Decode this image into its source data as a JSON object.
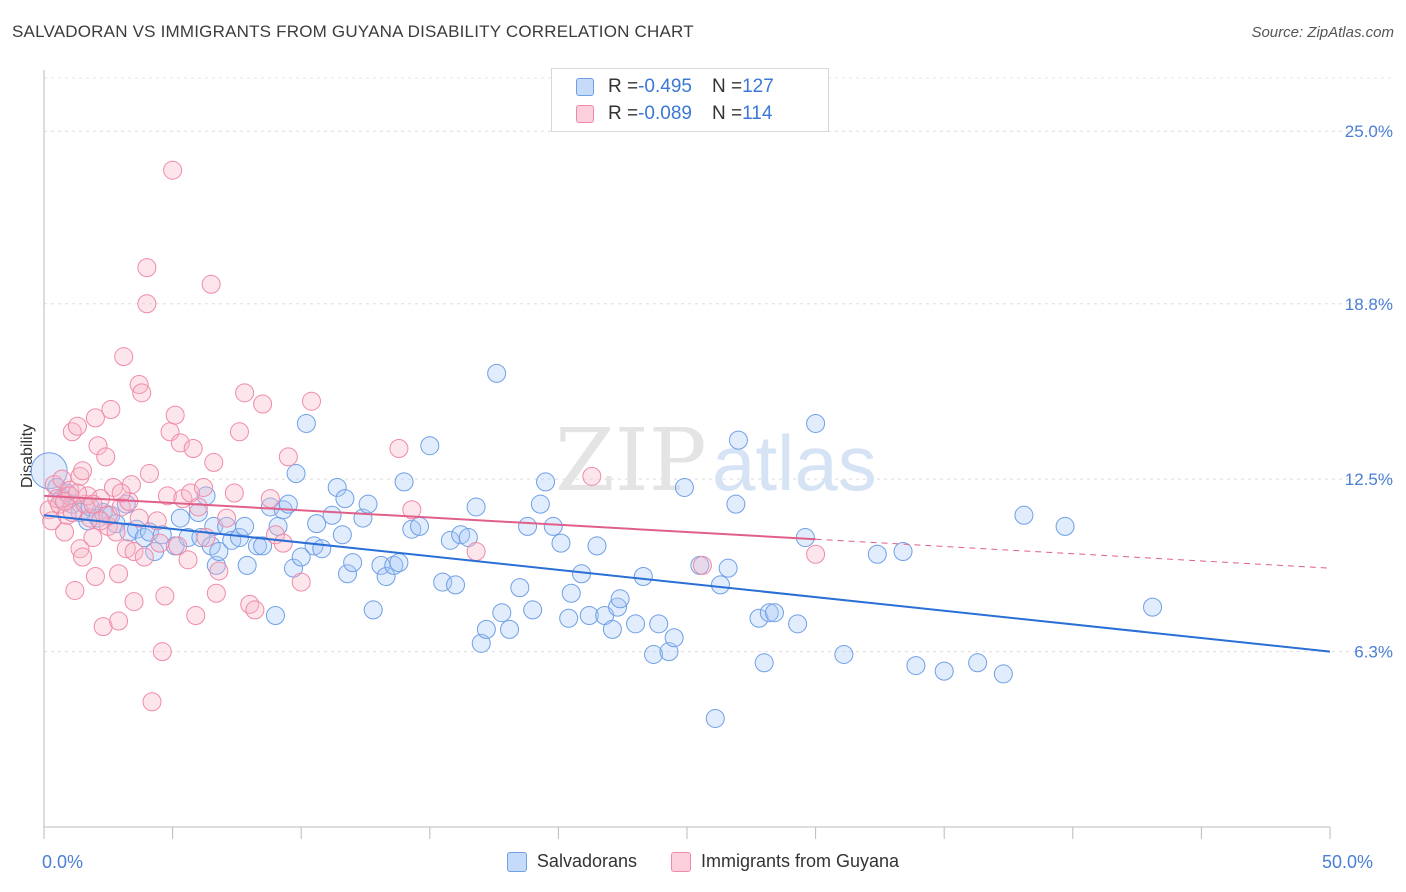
{
  "header": {
    "title": "SALVADORAN VS IMMIGRANTS FROM GUYANA DISABILITY CORRELATION CHART",
    "source": "Source: ZipAtlas.com"
  },
  "watermark": {
    "zip": "ZIP",
    "atlas": "atlas"
  },
  "legend": {
    "rows": [
      {
        "r_label": "R = ",
        "r_value": "-0.495",
        "n_label": "N = ",
        "n_value": "127",
        "color": "#a9c8f5"
      },
      {
        "r_label": "R = ",
        "r_value": "-0.089",
        "n_label": "N = ",
        "n_value": "114",
        "color": "#f7b6c9"
      }
    ]
  },
  "bottom_legend": {
    "items": [
      {
        "label": "Salvadorans",
        "color": "#a9c8f5"
      },
      {
        "label": "Immigrants from Guyana",
        "color": "#f7b6c9"
      }
    ]
  },
  "chart_data": {
    "type": "scatter",
    "title": "SALVADORAN VS IMMIGRANTS FROM GUYANA DISABILITY CORRELATION CHART",
    "xlabel": "",
    "ylabel": "Disability",
    "xlim": [
      0,
      50
    ],
    "ylim": [
      0,
      27.2
    ],
    "x_tick_labels": [
      "0.0%",
      "50.0%"
    ],
    "y_ticks": [
      6.3,
      12.5,
      18.8,
      25.0
    ],
    "y_tick_labels": [
      "6.3%",
      "12.5%",
      "18.8%",
      "25.0%"
    ],
    "grid": true,
    "legend_position": "top-center",
    "series": [
      {
        "name": "Salvadorans",
        "color": "#6fa0e6",
        "trend": {
          "x": [
            0,
            50
          ],
          "y": [
            11.2,
            6.3
          ],
          "dashed_from": null
        },
        "points": [
          [
            0.2,
            12.8
          ],
          [
            0.5,
            12.2
          ],
          [
            0.7,
            11.8
          ],
          [
            0.9,
            12.0
          ],
          [
            1.1,
            11.6
          ],
          [
            1.4,
            11.3
          ],
          [
            1.7,
            11.0
          ],
          [
            1.8,
            11.5
          ],
          [
            2.1,
            11.1
          ],
          [
            2.3,
            11.3
          ],
          [
            2.6,
            11.2
          ],
          [
            2.8,
            10.9
          ],
          [
            3.2,
            11.6
          ],
          [
            3.3,
            10.6
          ],
          [
            3.6,
            10.7
          ],
          [
            3.9,
            10.4
          ],
          [
            4.1,
            10.6
          ],
          [
            4.3,
            9.9
          ],
          [
            4.6,
            10.5
          ],
          [
            5.1,
            10.1
          ],
          [
            5.3,
            11.1
          ],
          [
            5.6,
            10.4
          ],
          [
            6.0,
            11.3
          ],
          [
            6.1,
            10.4
          ],
          [
            6.3,
            11.9
          ],
          [
            6.5,
            10.1
          ],
          [
            6.6,
            10.8
          ],
          [
            6.7,
            9.4
          ],
          [
            6.8,
            9.9
          ],
          [
            7.1,
            10.8
          ],
          [
            7.3,
            10.3
          ],
          [
            7.6,
            10.4
          ],
          [
            7.8,
            10.8
          ],
          [
            7.9,
            9.4
          ],
          [
            8.3,
            10.1
          ],
          [
            8.5,
            10.1
          ],
          [
            8.8,
            11.5
          ],
          [
            9.0,
            7.6
          ],
          [
            9.1,
            10.8
          ],
          [
            9.3,
            11.4
          ],
          [
            9.5,
            11.6
          ],
          [
            9.7,
            9.3
          ],
          [
            9.8,
            12.7
          ],
          [
            10.0,
            9.7
          ],
          [
            10.2,
            14.5
          ],
          [
            10.5,
            10.1
          ],
          [
            10.6,
            10.9
          ],
          [
            10.8,
            10.0
          ],
          [
            11.2,
            11.2
          ],
          [
            11.4,
            12.2
          ],
          [
            11.6,
            10.5
          ],
          [
            11.7,
            11.8
          ],
          [
            11.8,
            9.1
          ],
          [
            12.0,
            9.5
          ],
          [
            12.4,
            11.1
          ],
          [
            12.6,
            11.6
          ],
          [
            12.8,
            7.8
          ],
          [
            13.1,
            9.4
          ],
          [
            13.3,
            9.0
          ],
          [
            13.6,
            9.4
          ],
          [
            13.8,
            9.5
          ],
          [
            14.0,
            12.4
          ],
          [
            14.3,
            10.7
          ],
          [
            14.6,
            10.8
          ],
          [
            15.0,
            13.7
          ],
          [
            15.5,
            8.8
          ],
          [
            15.8,
            10.3
          ],
          [
            16.0,
            8.7
          ],
          [
            16.2,
            10.5
          ],
          [
            16.5,
            10.4
          ],
          [
            16.8,
            11.5
          ],
          [
            17.0,
            6.6
          ],
          [
            17.2,
            7.1
          ],
          [
            17.6,
            16.3
          ],
          [
            17.8,
            7.7
          ],
          [
            18.1,
            7.1
          ],
          [
            18.5,
            8.6
          ],
          [
            18.8,
            10.8
          ],
          [
            19.0,
            7.8
          ],
          [
            19.3,
            11.6
          ],
          [
            19.5,
            12.4
          ],
          [
            19.8,
            10.8
          ],
          [
            20.1,
            10.2
          ],
          [
            20.4,
            7.5
          ],
          [
            20.5,
            8.4
          ],
          [
            20.9,
            9.1
          ],
          [
            21.2,
            7.6
          ],
          [
            21.5,
            10.1
          ],
          [
            21.8,
            7.6
          ],
          [
            22.1,
            7.1
          ],
          [
            22.3,
            7.9
          ],
          [
            22.4,
            8.2
          ],
          [
            23.0,
            7.3
          ],
          [
            23.3,
            9.0
          ],
          [
            23.7,
            6.2
          ],
          [
            23.9,
            7.3
          ],
          [
            24.3,
            6.3
          ],
          [
            24.5,
            6.8
          ],
          [
            24.9,
            12.2
          ],
          [
            25.5,
            9.4
          ],
          [
            26.1,
            3.9
          ],
          [
            26.3,
            8.7
          ],
          [
            26.6,
            9.3
          ],
          [
            26.9,
            11.6
          ],
          [
            27.0,
            13.9
          ],
          [
            27.8,
            7.5
          ],
          [
            28.0,
            5.9
          ],
          [
            28.2,
            7.7
          ],
          [
            28.4,
            7.7
          ],
          [
            29.3,
            7.3
          ],
          [
            29.6,
            10.4
          ],
          [
            30.0,
            14.5
          ],
          [
            31.1,
            6.2
          ],
          [
            32.4,
            9.8
          ],
          [
            33.4,
            9.9
          ],
          [
            33.9,
            5.8
          ],
          [
            35.0,
            5.6
          ],
          [
            36.3,
            5.9
          ],
          [
            37.3,
            5.5
          ],
          [
            38.1,
            11.2
          ],
          [
            39.7,
            10.8
          ],
          [
            43.1,
            7.9
          ]
        ]
      },
      {
        "name": "Immigrants from Guyana",
        "color": "#f08aa8",
        "trend": {
          "x": [
            0,
            50
          ],
          "y": [
            11.9,
            9.3
          ],
          "dashed_from": 30
        },
        "points": [
          [
            0.2,
            11.4
          ],
          [
            0.3,
            11.0
          ],
          [
            0.4,
            12.3
          ],
          [
            0.5,
            11.8
          ],
          [
            0.6,
            11.6
          ],
          [
            0.7,
            12.5
          ],
          [
            0.8,
            10.6
          ],
          [
            0.9,
            11.2
          ],
          [
            1.0,
            12.1
          ],
          [
            1.1,
            11.3
          ],
          [
            1.1,
            14.2
          ],
          [
            1.2,
            8.5
          ],
          [
            1.3,
            14.4
          ],
          [
            1.4,
            10.0
          ],
          [
            1.4,
            12.6
          ],
          [
            1.5,
            9.7
          ],
          [
            1.6,
            11.6
          ],
          [
            1.7,
            11.9
          ],
          [
            1.8,
            11.1
          ],
          [
            1.9,
            10.4
          ],
          [
            2.0,
            14.7
          ],
          [
            2.0,
            9.0
          ],
          [
            2.1,
            13.7
          ],
          [
            2.2,
            11.8
          ],
          [
            2.3,
            7.2
          ],
          [
            2.4,
            13.3
          ],
          [
            2.5,
            10.8
          ],
          [
            2.5,
            11.2
          ],
          [
            2.6,
            15.0
          ],
          [
            2.7,
            12.2
          ],
          [
            2.8,
            10.6
          ],
          [
            2.9,
            7.4
          ],
          [
            2.9,
            9.1
          ],
          [
            3.0,
            11.5
          ],
          [
            3.1,
            16.9
          ],
          [
            3.2,
            10.0
          ],
          [
            3.3,
            11.7
          ],
          [
            3.4,
            12.3
          ],
          [
            3.5,
            9.9
          ],
          [
            3.5,
            8.1
          ],
          [
            3.7,
            15.9
          ],
          [
            3.7,
            11.1
          ],
          [
            3.8,
            15.6
          ],
          [
            3.9,
            9.7
          ],
          [
            4.0,
            20.1
          ],
          [
            4.0,
            18.8
          ],
          [
            4.1,
            12.7
          ],
          [
            4.2,
            4.5
          ],
          [
            4.4,
            11.0
          ],
          [
            4.5,
            10.2
          ],
          [
            4.6,
            6.3
          ],
          [
            4.7,
            8.3
          ],
          [
            4.8,
            11.9
          ],
          [
            4.9,
            14.2
          ],
          [
            5.0,
            23.6
          ],
          [
            5.1,
            14.8
          ],
          [
            5.2,
            10.1
          ],
          [
            5.3,
            13.8
          ],
          [
            5.4,
            11.8
          ],
          [
            5.6,
            9.6
          ],
          [
            5.7,
            12.0
          ],
          [
            5.8,
            13.6
          ],
          [
            5.9,
            7.6
          ],
          [
            6.0,
            11.5
          ],
          [
            6.2,
            12.2
          ],
          [
            6.3,
            10.4
          ],
          [
            6.5,
            19.5
          ],
          [
            6.6,
            13.1
          ],
          [
            6.7,
            8.4
          ],
          [
            6.8,
            9.2
          ],
          [
            7.1,
            11.1
          ],
          [
            7.4,
            12.0
          ],
          [
            7.6,
            14.2
          ],
          [
            7.8,
            15.6
          ],
          [
            8.0,
            8.0
          ],
          [
            8.2,
            7.8
          ],
          [
            8.5,
            15.2
          ],
          [
            8.8,
            11.8
          ],
          [
            9.0,
            10.5
          ],
          [
            9.3,
            10.2
          ],
          [
            9.5,
            13.3
          ],
          [
            10.0,
            8.8
          ],
          [
            10.4,
            15.3
          ],
          [
            13.8,
            13.6
          ],
          [
            14.3,
            11.4
          ],
          [
            16.8,
            9.9
          ],
          [
            21.3,
            12.6
          ],
          [
            25.6,
            9.4
          ],
          [
            30.0,
            9.8
          ],
          [
            1.0,
            11.9
          ],
          [
            1.5,
            12.8
          ],
          [
            2.2,
            11.0
          ],
          [
            3.0,
            12.0
          ],
          [
            0.8,
            11.7
          ],
          [
            1.3,
            12.0
          ],
          [
            1.9,
            11.6
          ]
        ]
      }
    ]
  }
}
